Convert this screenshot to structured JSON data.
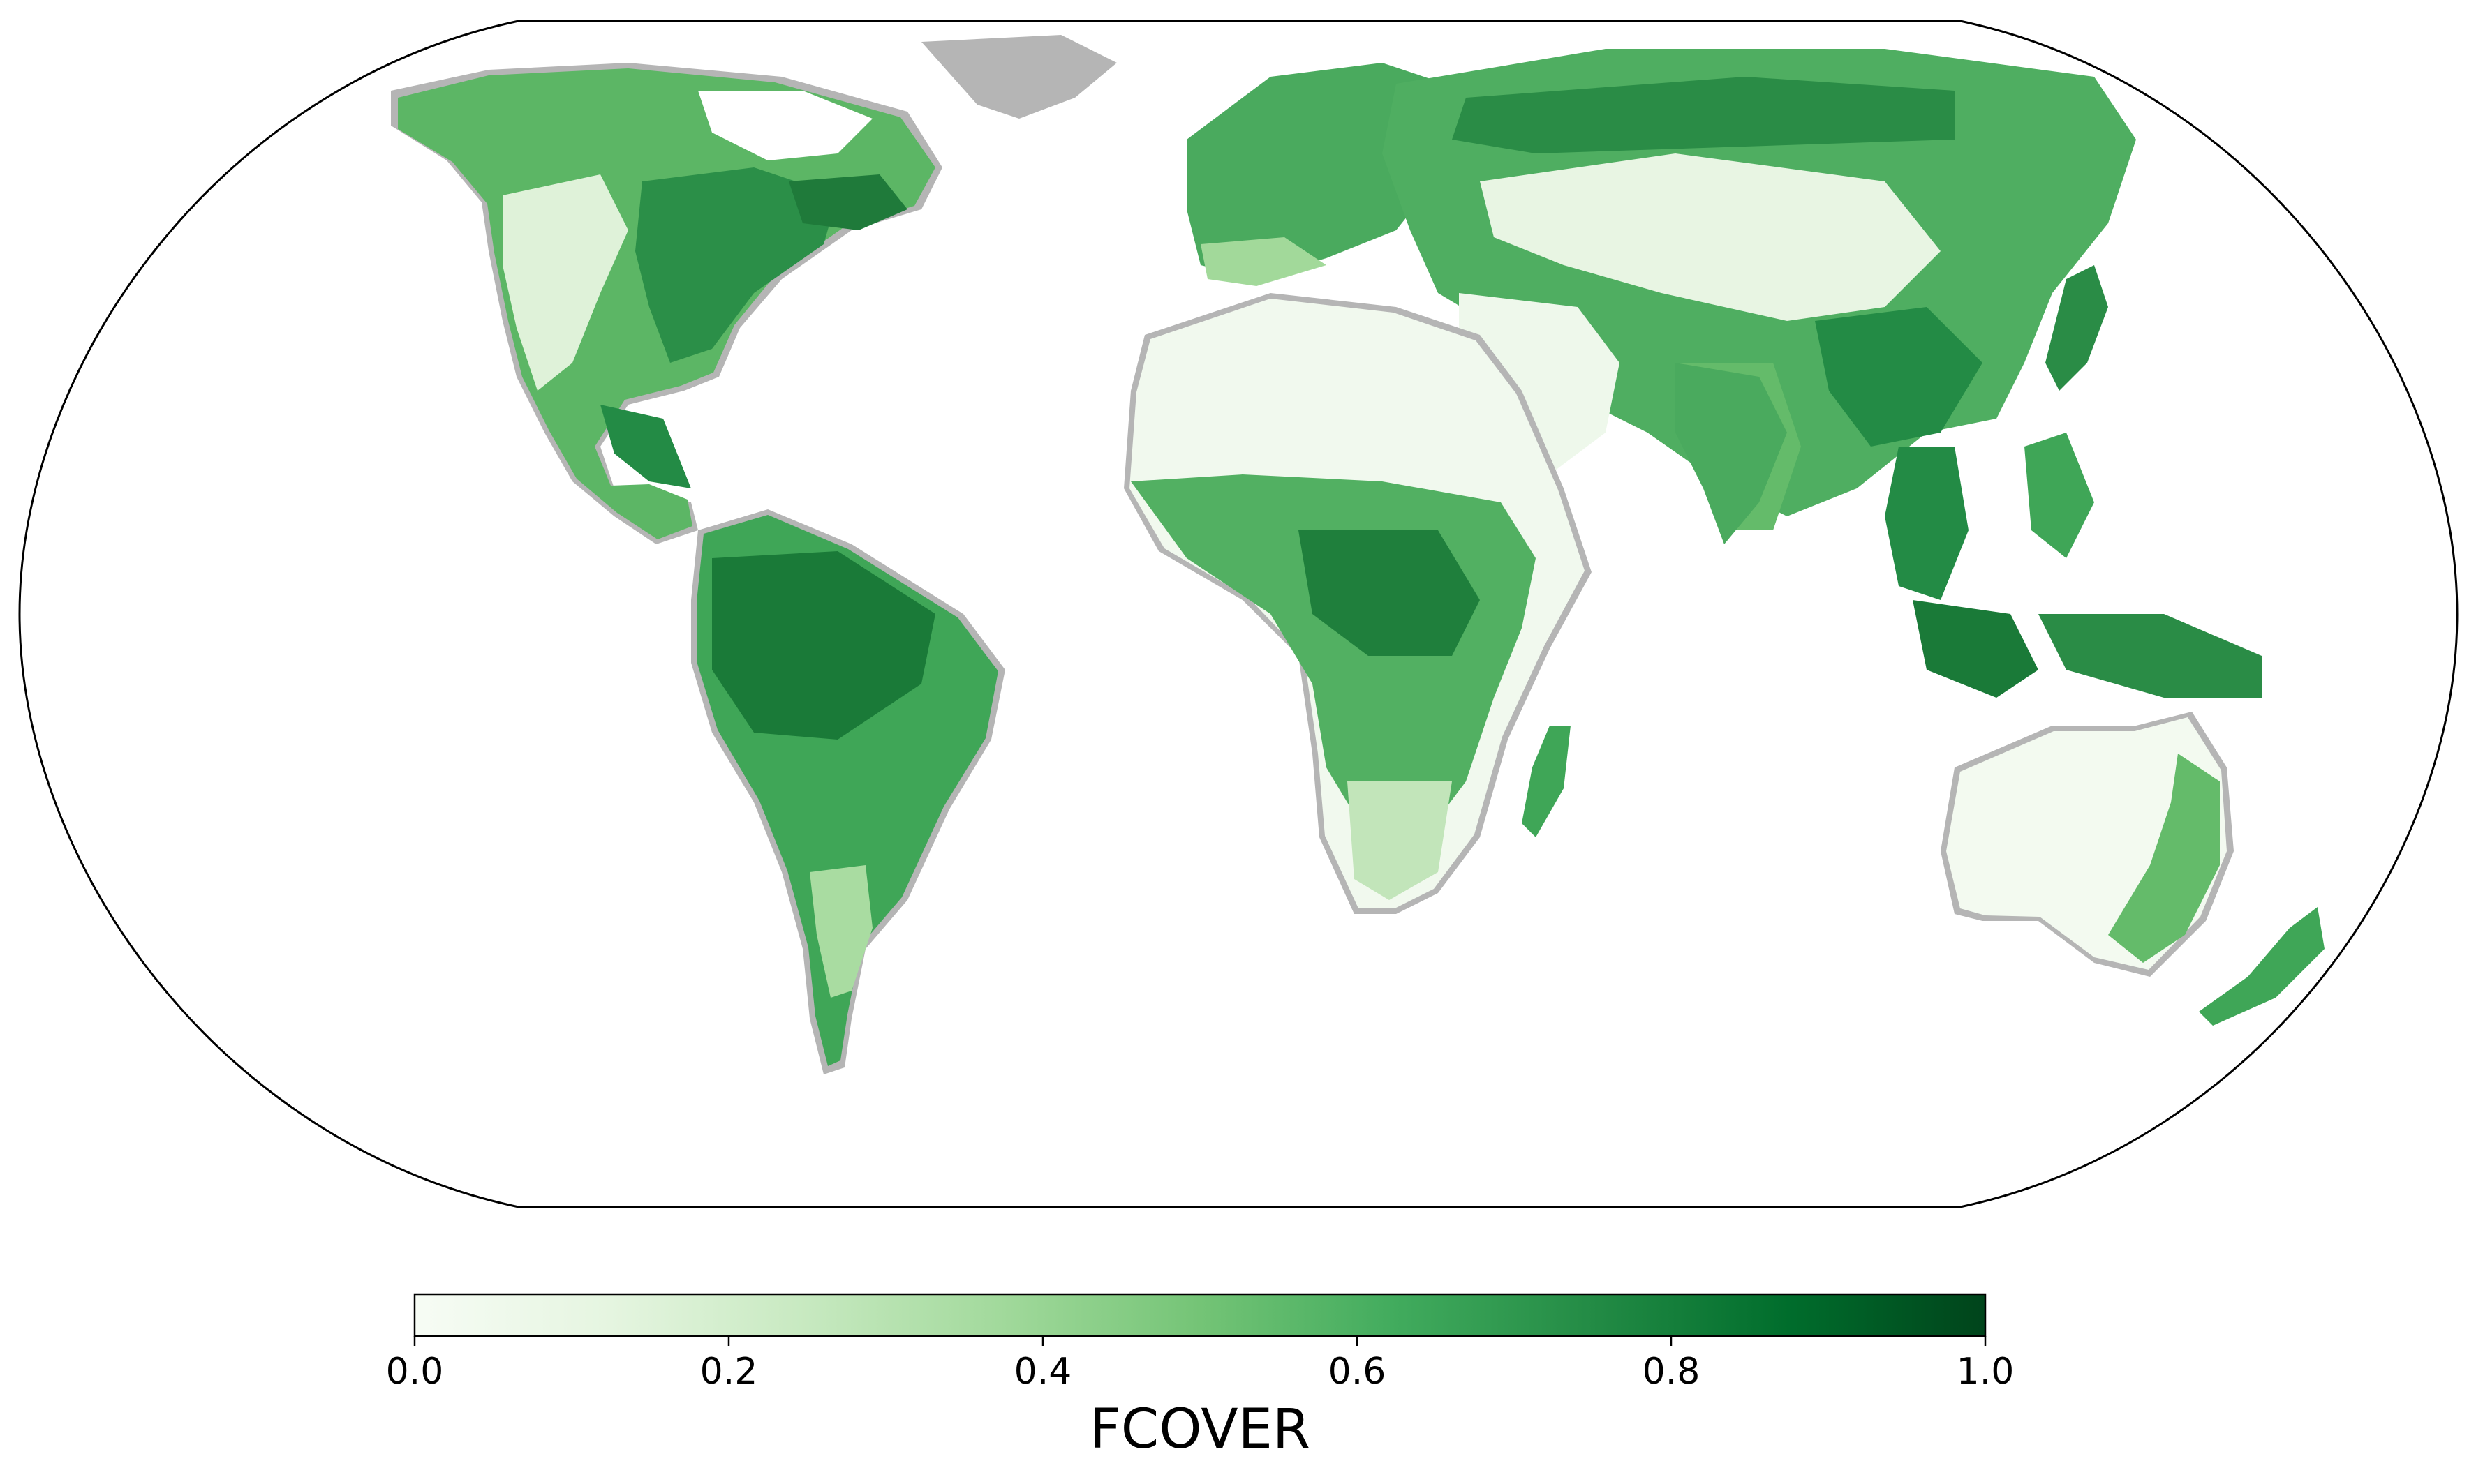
{
  "map": {
    "projection": "Robinson",
    "background": "#ffffff",
    "no_data_color": "#b5b5b5",
    "outline_color": "#000000"
  },
  "colorbar": {
    "label": "FCOVER",
    "colormap": "Greens",
    "range": [
      0.0,
      1.0
    ],
    "ticks": [
      {
        "value": 0.0,
        "label": "0.0"
      },
      {
        "value": 0.2,
        "label": "0.2"
      },
      {
        "value": 0.4,
        "label": "0.4"
      },
      {
        "value": 0.6,
        "label": "0.6"
      },
      {
        "value": 0.8,
        "label": "0.8"
      },
      {
        "value": 1.0,
        "label": "1.0"
      }
    ],
    "colors": [
      "#f7fcf5",
      "#e5f5e0",
      "#c7e9c0",
      "#a1d99b",
      "#74c476",
      "#41ab5d",
      "#238b45",
      "#006d2c",
      "#00441b"
    ]
  }
}
